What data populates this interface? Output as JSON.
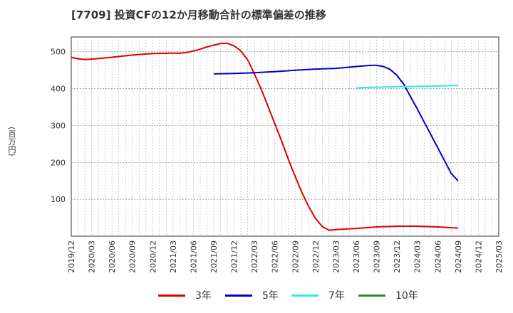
{
  "title": "[7709]  投資CFの12か月移動合計の標準偏差の推移",
  "y_unit_label": "(百万円)",
  "chart_data": {
    "type": "line",
    "title": "[7709]  投資CFの12か月移動合計の標準偏差の推移",
    "ylabel": "(百万円)",
    "xlabel": "",
    "ylim": [
      0,
      540
    ],
    "yticks": [
      100,
      200,
      300,
      400,
      500
    ],
    "xticks": [
      "2019/12",
      "2020/03",
      "2020/06",
      "2020/09",
      "2020/12",
      "2021/03",
      "2021/06",
      "2021/09",
      "2021/12",
      "2022/03",
      "2022/06",
      "2022/09",
      "2022/12",
      "2023/03",
      "2023/06",
      "2023/09",
      "2023/12",
      "2024/03",
      "2024/06",
      "2024/09",
      "2024/12",
      "2025/03"
    ],
    "grid": true,
    "legend_position": "bottom",
    "series": [
      {
        "name": "3年",
        "color": "#dd0000",
        "points": [
          [
            "2019/12",
            485
          ],
          [
            "2020/01",
            481
          ],
          [
            "2020/02",
            479
          ],
          [
            "2020/03",
            480
          ],
          [
            "2020/06",
            485
          ],
          [
            "2020/09",
            491
          ],
          [
            "2020/12",
            495
          ],
          [
            "2021/03",
            496
          ],
          [
            "2021/04",
            496
          ],
          [
            "2021/05",
            498
          ],
          [
            "2021/06",
            502
          ],
          [
            "2021/07",
            507
          ],
          [
            "2021/08",
            513
          ],
          [
            "2021/09",
            518
          ],
          [
            "2021/10",
            522
          ],
          [
            "2021/11",
            523
          ],
          [
            "2021/12",
            516
          ],
          [
            "2022/01",
            502
          ],
          [
            "2022/02",
            478
          ],
          [
            "2022/03",
            440
          ],
          [
            "2022/04",
            398
          ],
          [
            "2022/05",
            352
          ],
          [
            "2022/06",
            305
          ],
          [
            "2022/07",
            258
          ],
          [
            "2022/08",
            208
          ],
          [
            "2022/09",
            162
          ],
          [
            "2022/10",
            118
          ],
          [
            "2022/11",
            80
          ],
          [
            "2022/12",
            48
          ],
          [
            "2023/01",
            26
          ],
          [
            "2023/02",
            16
          ],
          [
            "2023/03",
            18
          ],
          [
            "2023/06",
            21
          ],
          [
            "2023/09",
            25
          ],
          [
            "2023/12",
            27
          ],
          [
            "2024/03",
            27
          ],
          [
            "2024/06",
            25
          ],
          [
            "2024/09",
            22
          ]
        ]
      },
      {
        "name": "5年",
        "color": "#0000cc",
        "points": [
          [
            "2021/09",
            440
          ],
          [
            "2021/12",
            441
          ],
          [
            "2022/03",
            443
          ],
          [
            "2022/06",
            446
          ],
          [
            "2022/09",
            450
          ],
          [
            "2022/12",
            453
          ],
          [
            "2023/03",
            455
          ],
          [
            "2023/06",
            460
          ],
          [
            "2023/08",
            463
          ],
          [
            "2023/09",
            463
          ],
          [
            "2023/10",
            460
          ],
          [
            "2023/11",
            452
          ],
          [
            "2023/12",
            436
          ],
          [
            "2024/01",
            412
          ],
          [
            "2024/02",
            378
          ],
          [
            "2024/03",
            345
          ],
          [
            "2024/04",
            310
          ],
          [
            "2024/05",
            275
          ],
          [
            "2024/06",
            240
          ],
          [
            "2024/07",
            205
          ],
          [
            "2024/08",
            170
          ],
          [
            "2024/09",
            150
          ]
        ]
      },
      {
        "name": "7年",
        "color": "#33e5ef",
        "points": [
          [
            "2023/06",
            402
          ],
          [
            "2023/09",
            404
          ],
          [
            "2023/12",
            405
          ],
          [
            "2024/03",
            406
          ],
          [
            "2024/06",
            407
          ],
          [
            "2024/09",
            409
          ]
        ]
      },
      {
        "name": "10年",
        "color": "#228b22",
        "points": []
      }
    ]
  }
}
